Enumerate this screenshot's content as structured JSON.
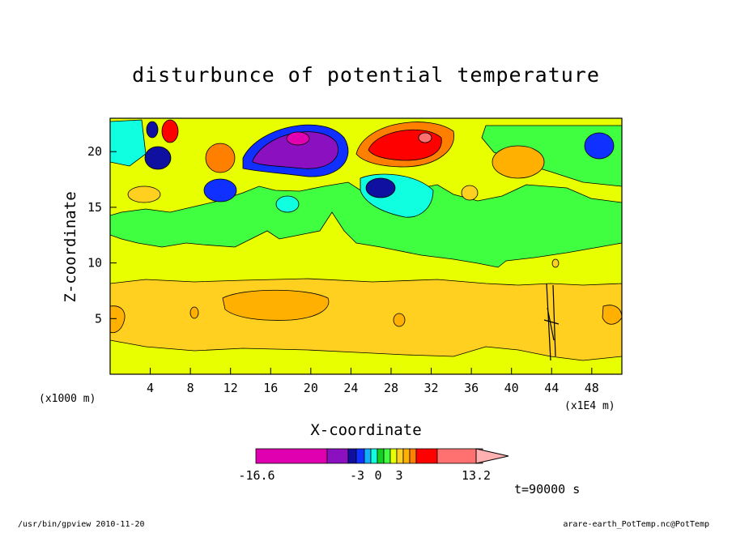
{
  "chart_data": {
    "type": "heatmap",
    "title": "disturbunce of potential temperature",
    "xlabel": "X-coordinate",
    "ylabel": "Z-coordinate",
    "x_unit": "(x1000 m)",
    "x_unit_secondary": "(x1E4 m)",
    "x_ticks": [
      "4",
      "8",
      "12",
      "16",
      "20",
      "24",
      "28",
      "32",
      "36",
      "40",
      "44",
      "48"
    ],
    "y_ticks": [
      "5",
      "10",
      "15",
      "20"
    ],
    "xlim": [
      0,
      51
    ],
    "ylim": [
      0,
      23
    ],
    "colorbar": {
      "labels": [
        "-16.6",
        "-3",
        "0",
        "3",
        "13.2"
      ],
      "colors": [
        "#e000b0",
        "#8a10c0",
        "#1010a0",
        "#1030ff",
        "#10b0ff",
        "#10ffe0",
        "#10d020",
        "#40ff40",
        "#e8ff00",
        "#ffd020",
        "#ffb000",
        "#ff8000",
        "#ff0000",
        "#ff7070",
        "#ffb0b0"
      ]
    },
    "time_label": "t=90000 s",
    "regions": [
      {
        "name": "lower-yellow-band",
        "level": "yellow",
        "x": [
          0,
          51
        ],
        "z": [
          0,
          11
        ]
      },
      {
        "name": "mid-orange-band",
        "level": "orange",
        "x": [
          0,
          51
        ],
        "z": [
          2,
          8
        ]
      },
      {
        "name": "green-layer",
        "level": "green",
        "x": [
          0,
          51
        ],
        "z": [
          11,
          17
        ]
      },
      {
        "name": "purple-cold-core",
        "level": "purple",
        "x": [
          19,
          20
        ],
        "z": [
          21
        ]
      },
      {
        "name": "red-warm-core",
        "level": "red",
        "x": [
          30,
          31
        ],
        "z": [
          21
        ]
      }
    ]
  },
  "footer": {
    "left": "/usr/bin/gpview  2010-11-20",
    "right": "arare-earth_PotTemp.nc@PotTemp"
  }
}
